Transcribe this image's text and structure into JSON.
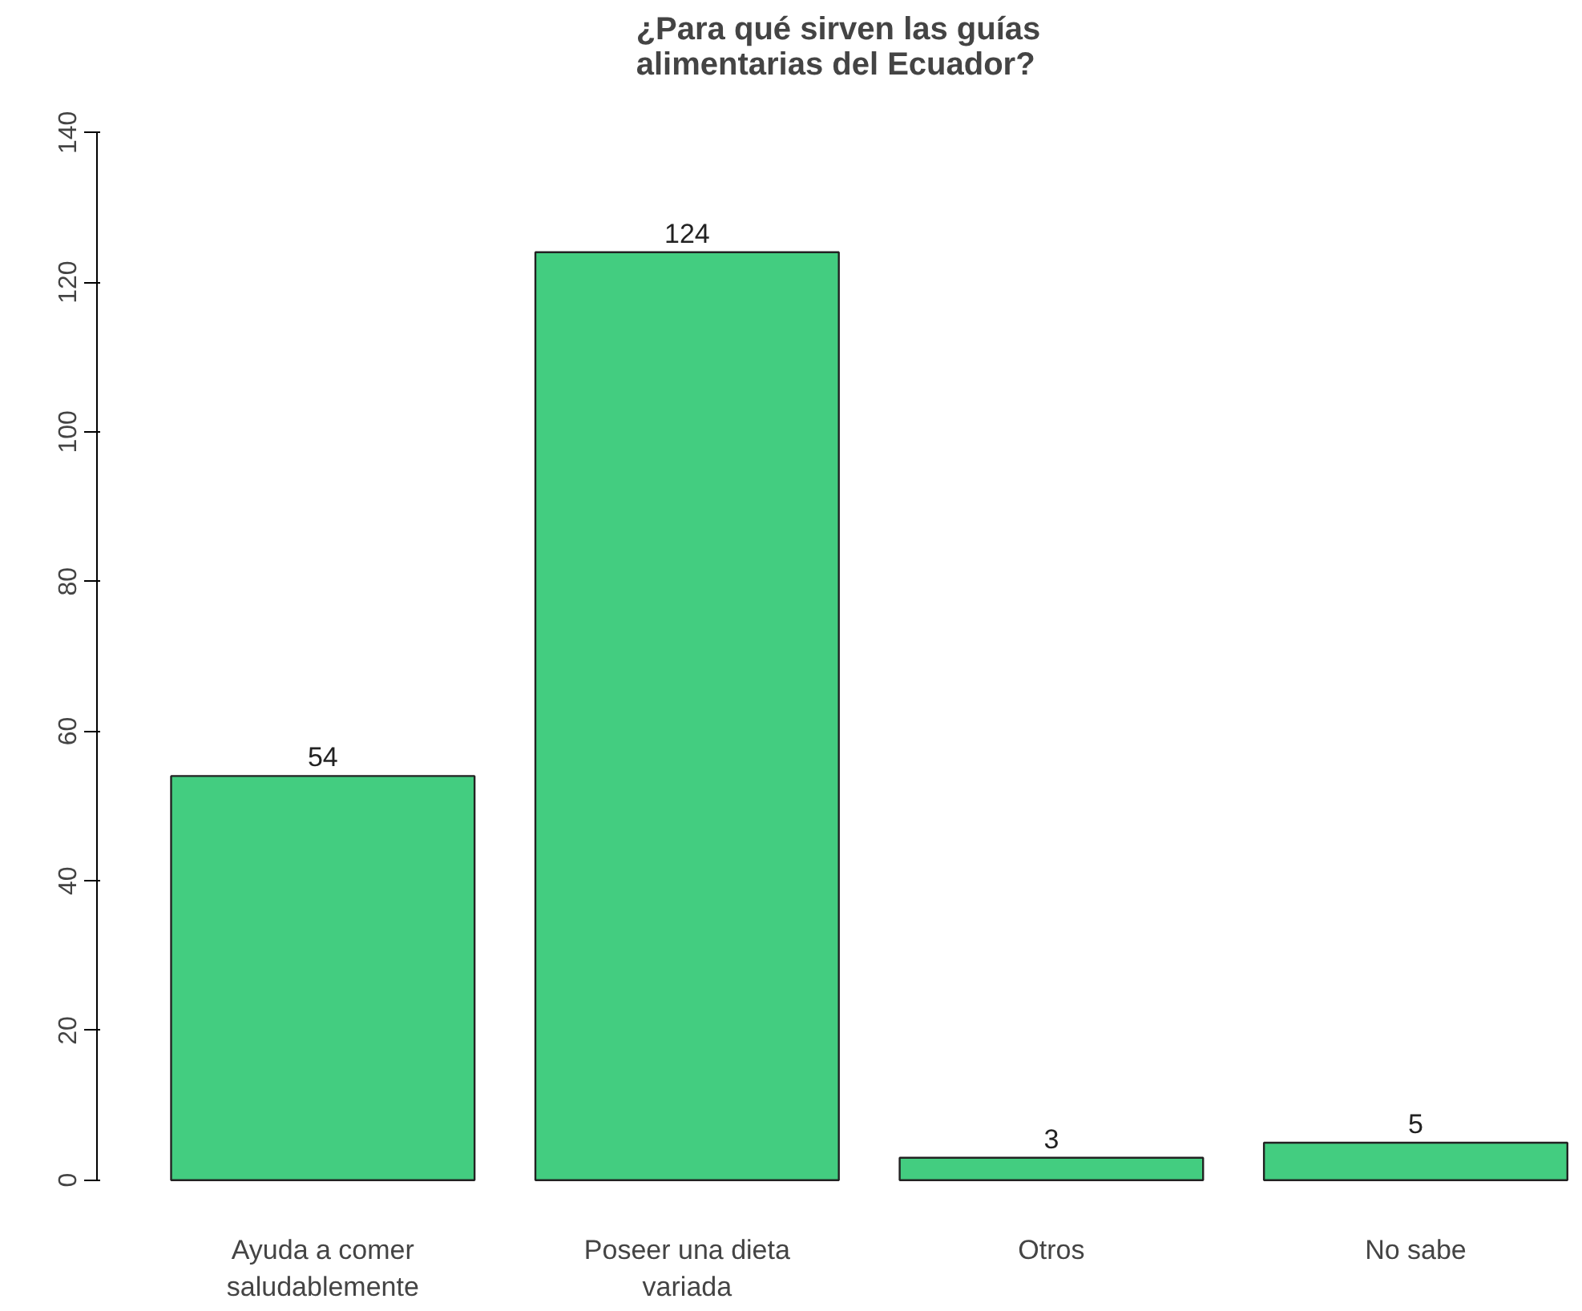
{
  "chart_data": {
    "type": "bar",
    "title": "¿Para qué sirven las guías alimentarias del Ecuador?",
    "categories": [
      "Ayuda a comer saludablemente",
      "Poseer una dieta variada",
      "Otros",
      "No sabe"
    ],
    "values": [
      54,
      124,
      3,
      5
    ],
    "color": "#43cd80",
    "ylim": [
      0,
      140
    ],
    "yticks": [
      0,
      20,
      40,
      60,
      80,
      100,
      120,
      140
    ],
    "data_labels": true
  }
}
